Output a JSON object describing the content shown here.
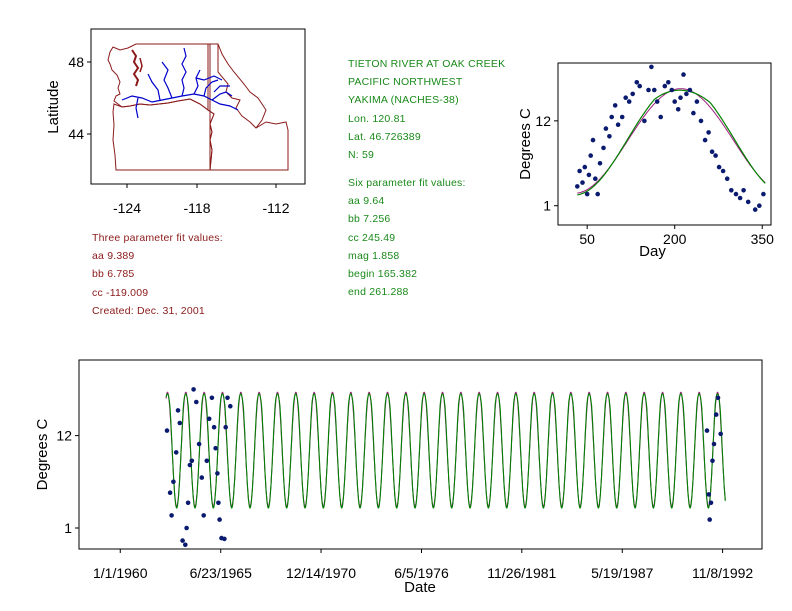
{
  "colors": {
    "state_border": "#8b1a1a",
    "river": "#0000cc",
    "text_red": "#8b1a1a",
    "text_green": "#1a8a1a",
    "fit_green": "#008000",
    "fit_purple": "#a0207f",
    "point": "#0a1a6e"
  },
  "map": {
    "ylabel": "Latitude",
    "yticks": [
      "48",
      "44"
    ],
    "xticks": [
      "-124",
      "-118",
      "-112"
    ]
  },
  "three_param": {
    "title": "Three parameter fit values:",
    "aa": "aa 9.389",
    "bb": "bb 6.785",
    "cc": "cc -119.009",
    "created": "Created:   Dec. 31, 2001"
  },
  "station": {
    "name": "TIETON RIVER AT OAK CREEK",
    "region": "PACIFIC NORTHWEST",
    "basin": "YAKIMA (NACHES-38)",
    "lon": "Lon. 120.81",
    "lat": "Lat. 46.726389",
    "n": "N: 59"
  },
  "six_param": {
    "title": "Six parameter fit values:",
    "aa": "aa 9.64",
    "bb": "bb 7.256",
    "cc": "cc 245.49",
    "mag": "mag 1.858",
    "begin": "begin 165.382",
    "end": "end 261.288"
  },
  "chart_data": [
    {
      "type": "scatter",
      "title": "",
      "xlabel": "Day",
      "ylabel": "Degrees C",
      "xlim": [
        0,
        365
      ],
      "ylim": [
        -1.5,
        19.5
      ],
      "xticks": [
        50,
        200,
        350
      ],
      "xtick_labels": [
        "50",
        "200",
        "350"
      ],
      "yticks": [
        1,
        12
      ],
      "ytick_labels": [
        "1",
        "12"
      ],
      "points": [
        [
          33,
          3.5
        ],
        [
          37,
          5.5
        ],
        [
          42,
          4.0
        ],
        [
          46,
          6.0
        ],
        [
          50,
          2.5
        ],
        [
          53,
          5.0
        ],
        [
          56,
          7.5
        ],
        [
          60,
          9.5
        ],
        [
          64,
          4.5
        ],
        [
          68,
          2.5
        ],
        [
          72,
          6.5
        ],
        [
          78,
          8.5
        ],
        [
          82,
          11.0
        ],
        [
          88,
          10.0
        ],
        [
          92,
          12.5
        ],
        [
          98,
          14.0
        ],
        [
          103,
          11.5
        ],
        [
          110,
          12.5
        ],
        [
          116,
          15.0
        ],
        [
          122,
          14.5
        ],
        [
          128,
          15.5
        ],
        [
          135,
          17.0
        ],
        [
          140,
          16.5
        ],
        [
          148,
          12.0
        ],
        [
          155,
          16.0
        ],
        [
          160,
          19.0
        ],
        [
          165,
          16.0
        ],
        [
          170,
          14.5
        ],
        [
          176,
          12.5
        ],
        [
          183,
          16.5
        ],
        [
          189,
          17.0
        ],
        [
          195,
          16.0
        ],
        [
          200,
          14.5
        ],
        [
          206,
          13.5
        ],
        [
          210,
          15.0
        ],
        [
          215,
          18.0
        ],
        [
          220,
          15.5
        ],
        [
          226,
          16.0
        ],
        [
          232,
          13.0
        ],
        [
          238,
          14.5
        ],
        [
          245,
          12.0
        ],
        [
          252,
          9.5
        ],
        [
          258,
          10.5
        ],
        [
          264,
          8.0
        ],
        [
          270,
          7.5
        ],
        [
          276,
          6.0
        ],
        [
          283,
          5.5
        ],
        [
          290,
          4.5
        ],
        [
          297,
          3.0
        ],
        [
          305,
          2.5
        ],
        [
          312,
          2.0
        ],
        [
          318,
          3.0
        ],
        [
          326,
          1.5
        ],
        [
          338,
          0.5
        ],
        [
          345,
          1.0
        ],
        [
          352,
          2.5
        ]
      ],
      "series": [
        {
          "name": "Three parameter fit",
          "params": {
            "aa": 9.389,
            "bb": 6.785,
            "cc": -119.009
          }
        },
        {
          "name": "Six parameter fit",
          "params": {
            "aa": 9.64,
            "bb": 7.256,
            "cc": 245.49,
            "mag": 1.858,
            "begin": 165.382,
            "end": 261.288
          }
        }
      ]
    },
    {
      "type": "line",
      "title": "",
      "xlabel": "Date",
      "ylabel": "Degrees C",
      "xlim_year": [
        1957.75,
        1995.0
      ],
      "ylim": [
        -1.5,
        21.0
      ],
      "xticks_year": [
        1960.0,
        1965.48,
        1970.95,
        1976.43,
        1981.9,
        1987.38,
        1992.85
      ],
      "xtick_labels": [
        "1/1/1960",
        "6/23/1965",
        "12/14/1970",
        "6/5/1976",
        "11/26/1981",
        "5/19/1987",
        "11/8/1992"
      ],
      "yticks": [
        1,
        12
      ],
      "ytick_labels": [
        "1",
        "12"
      ],
      "fit_year_range": [
        1962.5,
        1993.0
      ],
      "series": [
        {
          "name": "Three parameter fit",
          "color": "purple"
        },
        {
          "name": "Six parameter fit",
          "color": "green"
        }
      ],
      "points_year": [
        [
          1962.55,
          12.6
        ],
        [
          1962.72,
          5.2
        ],
        [
          1962.8,
          2.5
        ],
        [
          1962.9,
          6.5
        ],
        [
          1963.05,
          10.0
        ],
        [
          1963.15,
          15.0
        ],
        [
          1963.25,
          13.5
        ],
        [
          1963.4,
          -0.5
        ],
        [
          1963.55,
          -1.0
        ],
        [
          1963.62,
          1.0
        ],
        [
          1963.7,
          4.0
        ],
        [
          1963.8,
          8.5
        ],
        [
          1963.9,
          9.0
        ],
        [
          1964.0,
          17.5
        ],
        [
          1964.15,
          16.0
        ],
        [
          1964.3,
          11.0
        ],
        [
          1964.45,
          7.0
        ],
        [
          1964.55,
          2.5
        ],
        [
          1964.72,
          9.0
        ],
        [
          1964.85,
          14.0
        ],
        [
          1965.0,
          16.5
        ],
        [
          1965.12,
          13.0
        ],
        [
          1965.2,
          10.5
        ],
        [
          1965.3,
          7.5
        ],
        [
          1965.35,
          4.0
        ],
        [
          1965.42,
          2.0
        ],
        [
          1965.52,
          -0.2
        ],
        [
          1965.68,
          -0.3
        ],
        [
          1965.75,
          13.0
        ],
        [
          1965.85,
          16.5
        ],
        [
          1966.0,
          15.5
        ],
        [
          1992.0,
          12.6
        ],
        [
          1992.1,
          5.0
        ],
        [
          1992.15,
          2.0
        ],
        [
          1992.22,
          4.0
        ],
        [
          1992.3,
          9.0
        ],
        [
          1992.38,
          11.0
        ],
        [
          1992.5,
          14.5
        ],
        [
          1992.6,
          16.5
        ],
        [
          1992.75,
          12.2
        ]
      ]
    }
  ]
}
